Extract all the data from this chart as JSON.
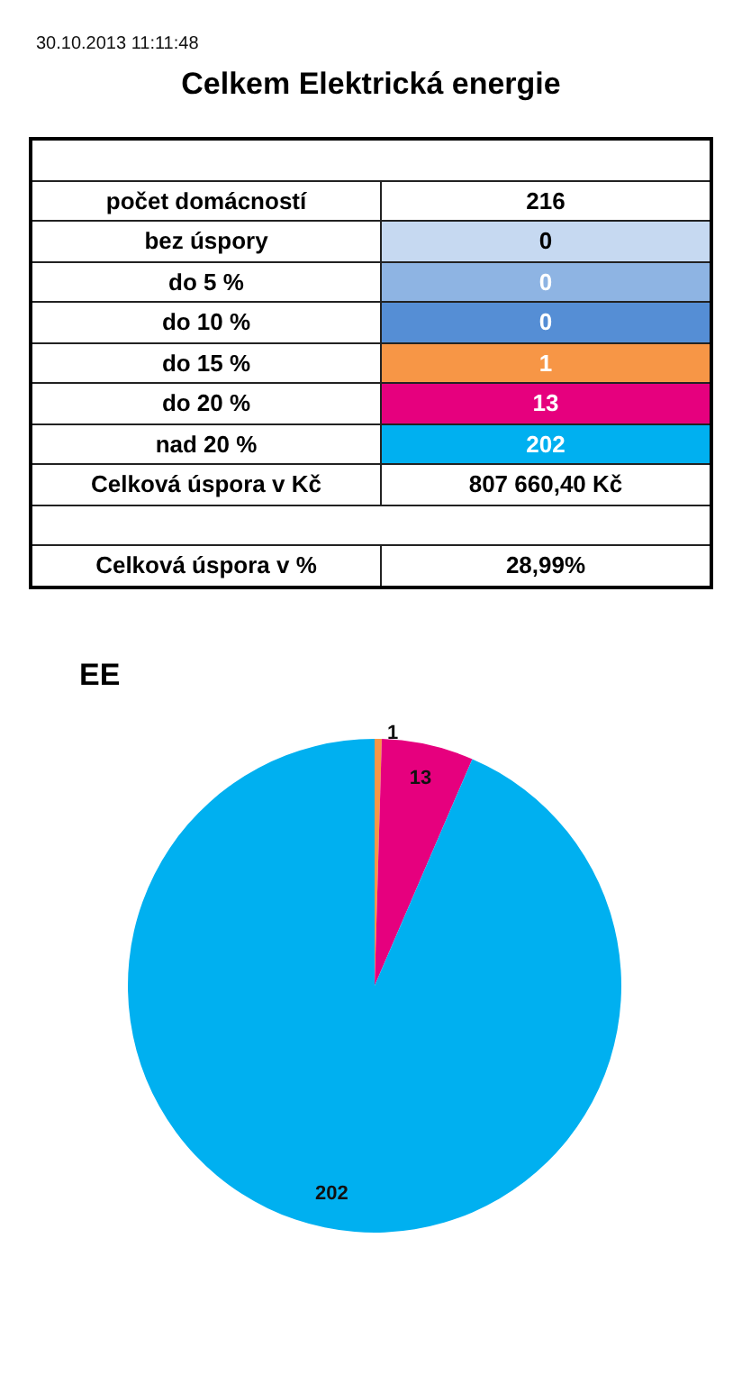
{
  "chart_data": [
    {
      "type": "other",
      "title": "Celkem Elektrická energie",
      "annotations": [
        "30.10.2013 11:11:48"
      ],
      "categories": [
        null,
        "počet domácností",
        "bez úspory",
        "do 5 %",
        "do 10 %",
        "do 15 %",
        "do 20 %",
        "nad 20 %",
        "Celková úspora v Kč",
        null,
        "Celková úspora v %"
      ],
      "values": [
        null,
        216,
        0,
        0,
        0,
        1,
        13,
        202,
        807660.4,
        null,
        28.99
      ],
      "value_labels": [
        null,
        "216",
        "0",
        "0",
        "0",
        "1",
        "13",
        "202",
        "807 660,40 Kč",
        null,
        "28,99%"
      ],
      "colors": [
        null,
        "#ffffff",
        "#c6d9f1",
        "#8eb4e3",
        "#558ed5",
        "#f79646",
        "#e6007e",
        "#00b0f0",
        "#ffffff",
        null,
        "#ffffff"
      ]
    },
    {
      "type": "pie",
      "title": "EE",
      "categories": [
        null,
        null,
        null
      ],
      "values": [
        1,
        13,
        202
      ],
      "colors": [
        "#f79646",
        "#e6007e",
        "#00b0f0"
      ],
      "data_labels": true
    }
  ]
}
